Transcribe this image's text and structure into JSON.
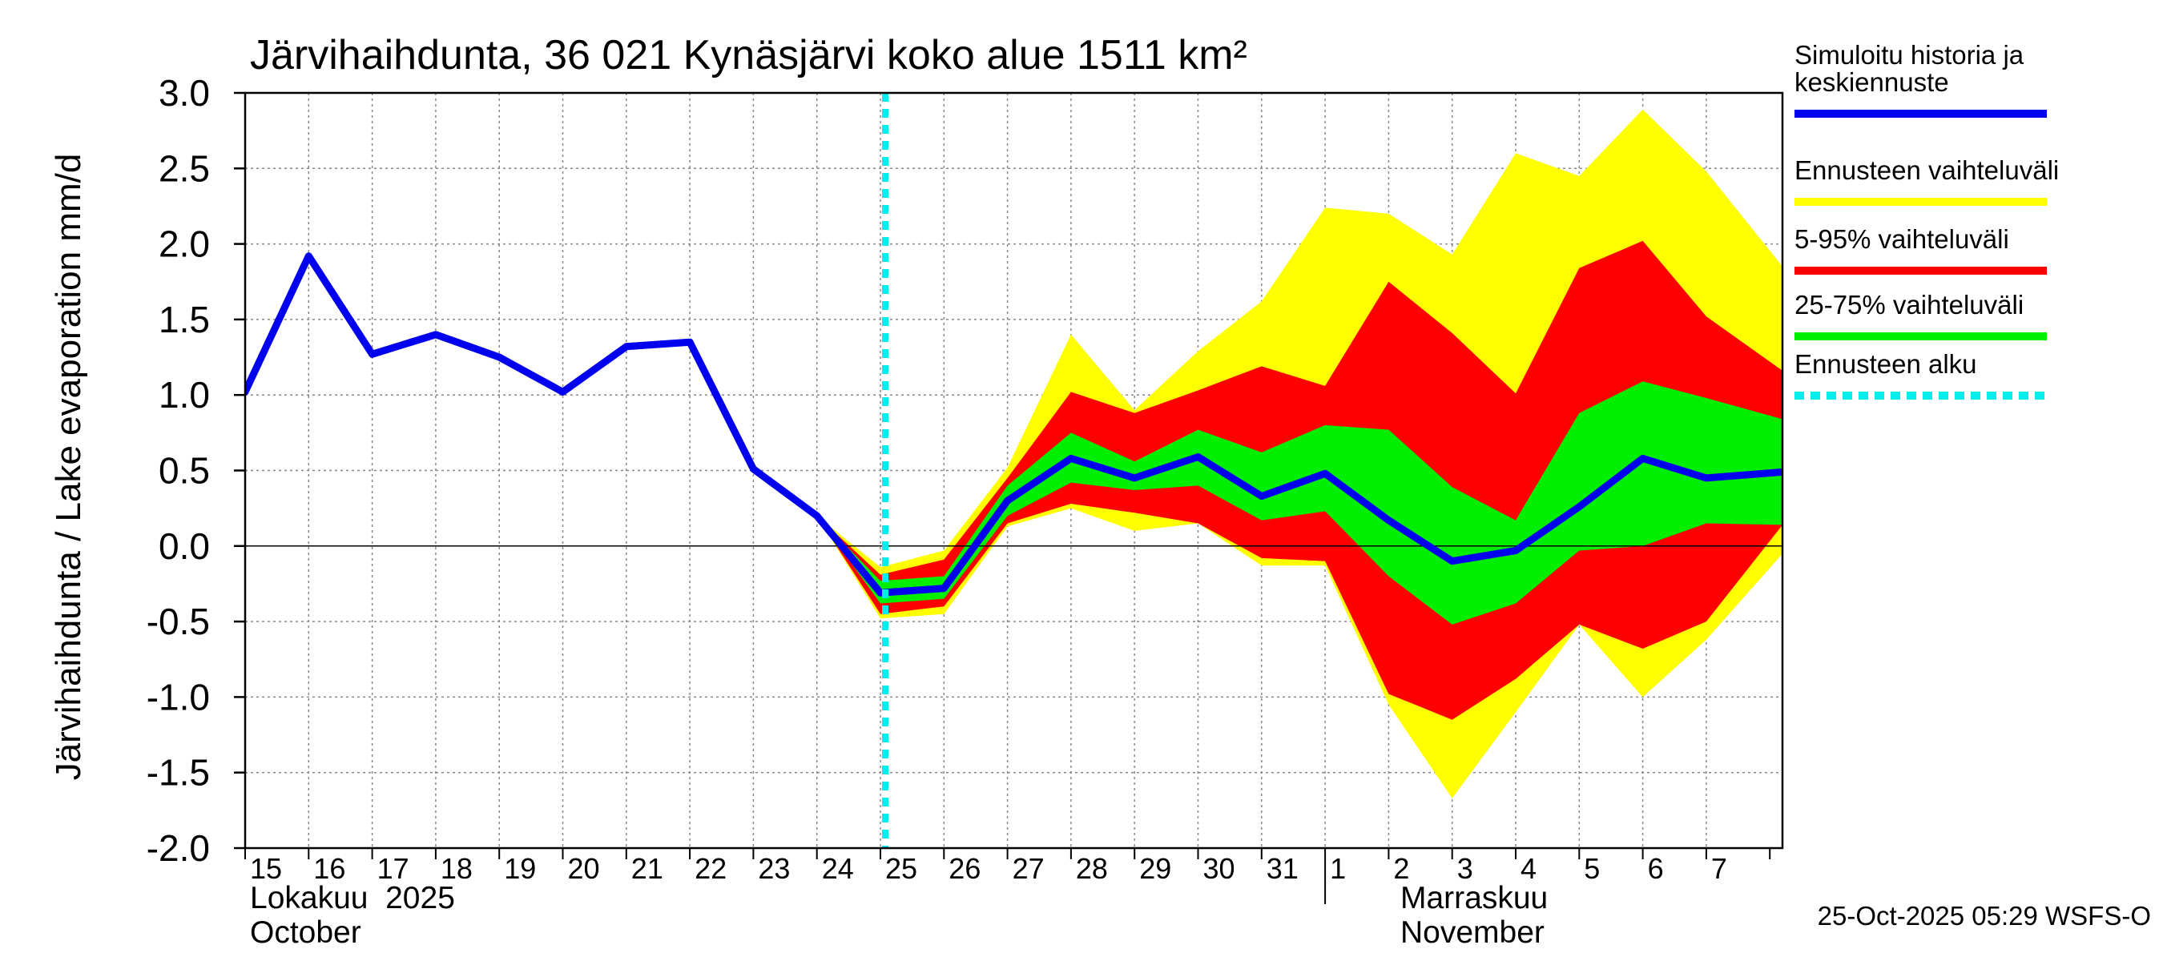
{
  "chart_data": {
    "type": "area",
    "title": "Järvihaihdunta, 36 021 Kynäsjärvi koko alue 1511 km²",
    "ylabel": "Järvihaihdunta / Lake evaporation   mm/d",
    "ylim": [
      -2.0,
      3.0
    ],
    "yticks": [
      "3.0",
      "2.5",
      "2.0",
      "1.5",
      "1.0",
      "0.5",
      "0.0",
      "-0.5",
      "-1.0",
      "-1.5",
      "-2.0"
    ],
    "ytick_values": [
      3.0,
      2.5,
      2.0,
      1.5,
      1.0,
      0.5,
      0.0,
      -0.5,
      -1.0,
      -1.5,
      -2.0
    ],
    "x_range_days": [
      0,
      24.2
    ],
    "x_labels": [
      "15",
      "16",
      "17",
      "18",
      "19",
      "20",
      "21",
      "22",
      "23",
      "24",
      "25",
      "26",
      "27",
      "28",
      "29",
      "30",
      "31",
      "1",
      "2",
      "3",
      "4",
      "5",
      "6",
      "7"
    ],
    "month_labels": {
      "oct_fi": "Lokakuu  2025",
      "oct_en": "October",
      "nov_fi": "Marraskuu",
      "nov_en": "November"
    },
    "grid": true,
    "forecast_start_day": 10.0,
    "footer": "25-Oct-2025 05:29 WSFS-O",
    "history": {
      "x": [
        0,
        1,
        2,
        3,
        4,
        5,
        6,
        7,
        8,
        9,
        10,
        11,
        12,
        13,
        14,
        15,
        16,
        17,
        18,
        19,
        20,
        21,
        22,
        23,
        24.2
      ],
      "y": [
        1.02,
        1.92,
        1.27,
        1.4,
        1.25,
        1.02,
        1.32,
        1.35,
        0.51,
        0.2,
        -0.31,
        -0.28,
        0.3,
        0.58,
        0.45,
        0.59,
        0.33,
        0.48,
        0.17,
        -0.1,
        -0.03,
        0.26,
        0.58,
        0.45,
        0.49
      ]
    },
    "bands": {
      "x": [
        9,
        10,
        11,
        12,
        13,
        14,
        15,
        16,
        17,
        18,
        19,
        20,
        21,
        22,
        23,
        24.2
      ],
      "full_range": {
        "low": [
          0.2,
          -0.48,
          -0.45,
          0.13,
          0.25,
          0.1,
          0.15,
          -0.13,
          -0.13,
          -1.05,
          -1.67,
          -1.1,
          -0.52,
          -1.0,
          -0.62,
          -0.05
        ],
        "high": [
          0.2,
          -0.14,
          -0.03,
          0.52,
          1.4,
          0.9,
          1.29,
          1.62,
          2.24,
          2.2,
          1.93,
          2.6,
          2.45,
          2.89,
          2.48,
          1.85
        ]
      },
      "p5_95": {
        "low": [
          0.2,
          -0.45,
          -0.4,
          0.15,
          0.28,
          0.22,
          0.15,
          -0.08,
          -0.1,
          -0.98,
          -1.15,
          -0.88,
          -0.52,
          -0.68,
          -0.5,
          0.14
        ],
        "high": [
          0.2,
          -0.19,
          -0.09,
          0.45,
          1.02,
          0.88,
          1.03,
          1.19,
          1.06,
          1.75,
          1.41,
          1.01,
          1.84,
          2.02,
          1.52,
          1.16
        ]
      },
      "p25_75": {
        "low": [
          0.2,
          -0.38,
          -0.35,
          0.2,
          0.42,
          0.37,
          0.4,
          0.17,
          0.23,
          -0.2,
          -0.52,
          -0.38,
          -0.03,
          0.0,
          0.15,
          0.14
        ],
        "high": [
          0.2,
          -0.23,
          -0.2,
          0.4,
          0.75,
          0.56,
          0.77,
          0.62,
          0.8,
          0.77,
          0.39,
          0.17,
          0.88,
          1.09,
          0.98,
          0.84
        ]
      }
    },
    "legend": [
      {
        "label_lines": [
          "Simuloitu historia ja",
          "keskiennuste"
        ],
        "color": "#0000ee",
        "style": "solid"
      },
      {
        "label_lines": [
          "Ennusteen vaihteluväli"
        ],
        "color": "#ffff00",
        "style": "solid"
      },
      {
        "label_lines": [
          "5-95% vaihteluväli"
        ],
        "color": "#ff0000",
        "style": "solid"
      },
      {
        "label_lines": [
          "25-75% vaihteluväli"
        ],
        "color": "#00ee00",
        "style": "solid"
      },
      {
        "label_lines": [
          "Ennusteen alku"
        ],
        "color": "#00eeee",
        "style": "dotted"
      }
    ],
    "colors": {
      "full_range": "#ffff00",
      "p5_95": "#ff0000",
      "p25_75": "#00ee00",
      "history": "#0000ee",
      "forecast_start": "#00eeee",
      "grid": "#888888"
    }
  }
}
